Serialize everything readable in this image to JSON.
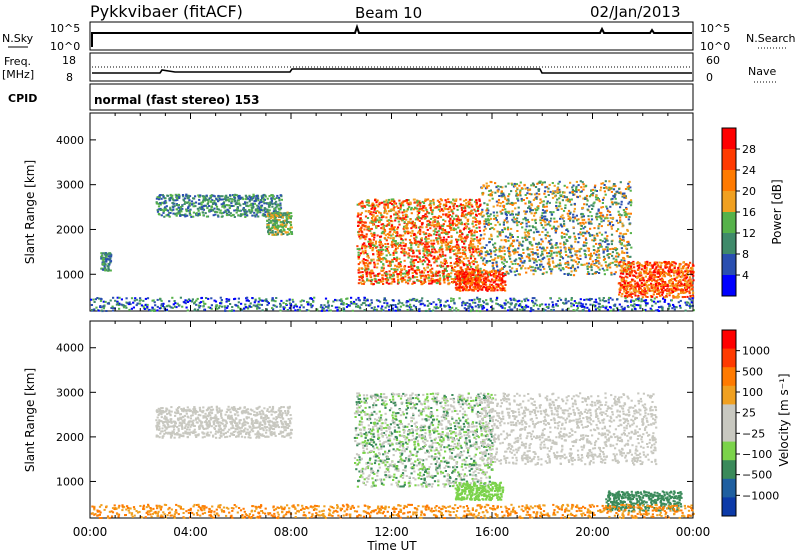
{
  "header": {
    "station": "Pykkvibaer (fitACF)",
    "beam": "Beam 10",
    "date": "02/Jan/2013"
  },
  "labels": {
    "nsky": "N.Sky",
    "nsearch": "N.Search",
    "freq_line1": "Freq.",
    "freq_line2": "[MHz]",
    "nave": "Nave",
    "cpid": "CPID",
    "mode": "normal (fast stereo) 153",
    "top_ticks_left": [
      "10^5",
      "10^0"
    ],
    "top_ticks_right": [
      "10^5",
      "10^0"
    ],
    "freq_ticks_left": [
      "18",
      "8"
    ],
    "freq_ticks_right": [
      "60",
      "0"
    ]
  },
  "colors": {
    "power_scale": [
      "#0000ff",
      "#2a4fb0",
      "#3f8a6a",
      "#56b24a",
      "#f0a020",
      "#ff7a00",
      "#ff3a00",
      "#ff0000"
    ],
    "velocity_scale": [
      "#0c3aa8",
      "#1f5fa0",
      "#3a8a5a",
      "#7bd34a",
      "#c8c8c0",
      "#c8c8c0",
      "#f0a020",
      "#ff7a00",
      "#ff3a00",
      "#ff0000"
    ]
  },
  "chart_data": [
    {
      "type": "heatmap",
      "name": "power",
      "xlabel": "",
      "ylabel": "Slant Range [km]",
      "xlim": [
        "00:00",
        "24:00"
      ],
      "ylim": [
        180,
        4600
      ],
      "yticks": [
        "1000",
        "2000",
        "3000",
        "4000"
      ],
      "colorbar": {
        "label": "Power [dB]",
        "ticks": [
          "28",
          "24",
          "20",
          "16",
          "12",
          "8",
          "4"
        ]
      }
    },
    {
      "type": "heatmap",
      "name": "velocity",
      "xlabel": "Time UT",
      "ylabel": "Slant Range [km]",
      "xlim": [
        "00:00",
        "24:00"
      ],
      "ylim": [
        180,
        4600
      ],
      "xticks": [
        "00:00",
        "04:00",
        "08:00",
        "12:00",
        "16:00",
        "20:00",
        "00:00"
      ],
      "yticks": [
        "1000",
        "2000",
        "3000",
        "4000"
      ],
      "colorbar": {
        "label": "Velocity [m s⁻¹]",
        "ticks": [
          "1000",
          "500",
          "100",
          "25",
          "−25",
          "−100",
          "−500",
          "−1000"
        ]
      }
    }
  ]
}
